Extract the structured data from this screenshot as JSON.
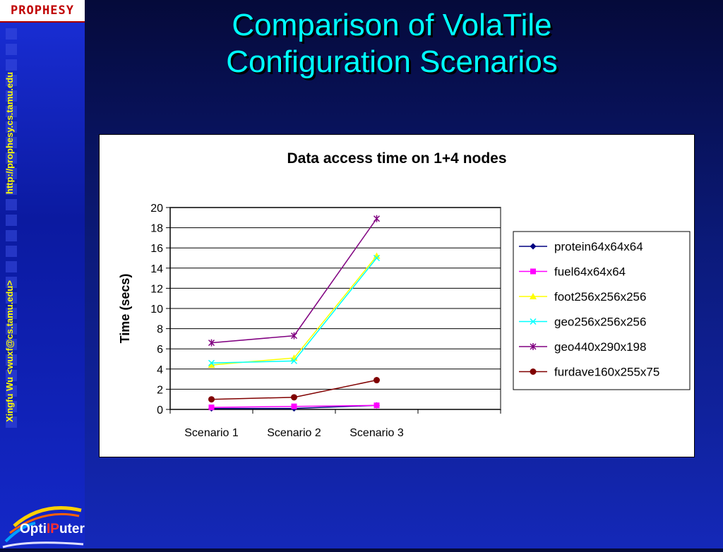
{
  "logo_text": "PROPHESY",
  "sidebar": {
    "url": "http://prophesy.cs.tamu.edu",
    "author": "Xingfu Wu  <wuxf@cs.tamu.edu>",
    "footer_logo": {
      "prefix": "Opti",
      "highlight": "IP",
      "suffix": "uter"
    }
  },
  "slide_title_line1": "Comparison of VolaTile",
  "slide_title_line2": "Configuration Scenarios",
  "colors": {
    "title": "#00ffff",
    "sidebar_text": "#ffff00",
    "accent_red": "#c00000"
  },
  "chart_data": {
    "type": "line",
    "title": "Data access time on 1+4 nodes",
    "xlabel": "",
    "ylabel": "Time (secs)",
    "categories": [
      "Scenario 1",
      "Scenario 2",
      "Scenario 3"
    ],
    "ylim": [
      0,
      20
    ],
    "yticks": [
      0,
      2,
      4,
      6,
      8,
      10,
      12,
      14,
      16,
      18,
      20
    ],
    "grid": "horizontal",
    "legend_position": "right",
    "series": [
      {
        "name": "protein64x64x64",
        "values": [
          0.1,
          0.1,
          0.4
        ],
        "color": "#000080",
        "marker": "diamond"
      },
      {
        "name": "fuel64x64x64",
        "values": [
          0.2,
          0.3,
          0.4
        ],
        "color": "#ff00ff",
        "marker": "square"
      },
      {
        "name": "foot256x256x256",
        "values": [
          4.4,
          5.1,
          15.2
        ],
        "color": "#ffff00",
        "marker": "triangle"
      },
      {
        "name": "geo256x256x256",
        "values": [
          4.6,
          4.8,
          15.0
        ],
        "color": "#00ffff",
        "marker": "x"
      },
      {
        "name": "geo440x290x198",
        "values": [
          6.6,
          7.3,
          18.9
        ],
        "color": "#800080",
        "marker": "star"
      },
      {
        "name": "furdave160x255x75",
        "values": [
          1.0,
          1.2,
          2.9
        ],
        "color": "#800000",
        "marker": "circle"
      }
    ]
  }
}
